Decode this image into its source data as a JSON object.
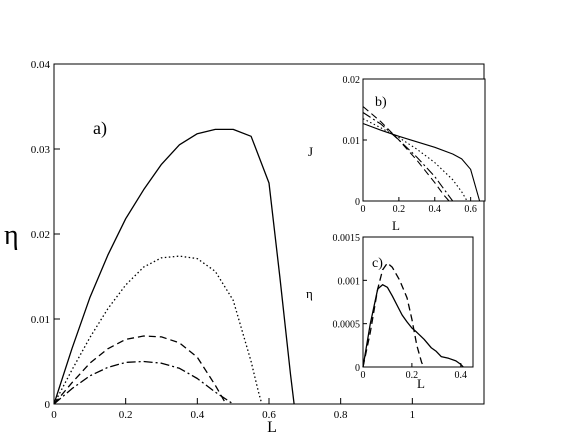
{
  "colors": {
    "line": "#000000",
    "background": "#ffffff"
  },
  "chart_data": [
    {
      "id": "main",
      "type": "line",
      "panel_label": "a)",
      "xlabel": "L",
      "ylabel": "η",
      "xlim": [
        0,
        1.2
      ],
      "ylim": [
        0,
        0.04
      ],
      "xticks": [
        0,
        0.2,
        0.4,
        0.6,
        0.8,
        1
      ],
      "xtick_labels": [
        "0",
        "0.2",
        "0.4",
        "0.6",
        "0.8",
        "1"
      ],
      "yticks": [
        0,
        0.01,
        0.02,
        0.03,
        0.04
      ],
      "ytick_labels": [
        "0",
        "0.01",
        "0.02",
        "0.03",
        "0.04"
      ],
      "grid": false,
      "series": [
        {
          "style": "solid",
          "x": [
            0,
            0.05,
            0.1,
            0.15,
            0.2,
            0.25,
            0.3,
            0.35,
            0.4,
            0.45,
            0.5,
            0.55,
            0.6,
            0.63,
            0.66,
            0.67
          ],
          "y": [
            0,
            0.0065,
            0.0125,
            0.0175,
            0.0218,
            0.0252,
            0.0282,
            0.0305,
            0.0318,
            0.0323,
            0.0323,
            0.0315,
            0.026,
            0.015,
            0.0035,
            0
          ]
        },
        {
          "style": "dotted",
          "x": [
            0,
            0.05,
            0.1,
            0.15,
            0.2,
            0.25,
            0.3,
            0.35,
            0.4,
            0.45,
            0.5,
            0.55,
            0.57,
            0.58
          ],
          "y": [
            0,
            0.004,
            0.0078,
            0.0112,
            0.014,
            0.0161,
            0.0172,
            0.0174,
            0.0171,
            0.0156,
            0.0122,
            0.005,
            0.0015,
            0
          ]
        },
        {
          "style": "dashed",
          "x": [
            0,
            0.05,
            0.1,
            0.15,
            0.2,
            0.25,
            0.3,
            0.35,
            0.4,
            0.45,
            0.48
          ],
          "y": [
            0,
            0.0025,
            0.0048,
            0.0065,
            0.0076,
            0.008,
            0.0079,
            0.0072,
            0.0055,
            0.0022,
            0
          ]
        },
        {
          "style": "dashdot",
          "x": [
            0,
            0.05,
            0.1,
            0.15,
            0.2,
            0.25,
            0.3,
            0.35,
            0.4,
            0.45,
            0.5
          ],
          "y": [
            0,
            0.0018,
            0.0033,
            0.0043,
            0.0049,
            0.005,
            0.0048,
            0.0042,
            0.003,
            0.0014,
            0
          ]
        }
      ]
    },
    {
      "id": "inset_b",
      "type": "line",
      "panel_label": "b)",
      "xlabel": "L",
      "ylabel": "J",
      "xlim": [
        0,
        0.68
      ],
      "ylim": [
        0,
        0.02
      ],
      "xticks": [
        0,
        0.2,
        0.4,
        0.6
      ],
      "xtick_labels": [
        "0",
        "0.2",
        "0.4",
        "0.6"
      ],
      "yticks": [
        0,
        0.01,
        0.02
      ],
      "ytick_labels": [
        "0",
        "0.01",
        "0.02"
      ],
      "grid": false,
      "series": [
        {
          "style": "solid",
          "x": [
            0,
            0.1,
            0.2,
            0.3,
            0.4,
            0.5,
            0.55,
            0.6,
            0.65
          ],
          "y": [
            0.0127,
            0.0116,
            0.0106,
            0.0097,
            0.0088,
            0.0077,
            0.0069,
            0.0052,
            0
          ]
        },
        {
          "style": "dotted",
          "x": [
            0,
            0.1,
            0.2,
            0.3,
            0.4,
            0.5,
            0.55,
            0.58
          ],
          "y": [
            0.0135,
            0.012,
            0.0104,
            0.0085,
            0.0063,
            0.0035,
            0.0015,
            0
          ]
        },
        {
          "style": "dashed",
          "x": [
            0,
            0.1,
            0.2,
            0.3,
            0.4,
            0.45,
            0.48
          ],
          "y": [
            0.0155,
            0.013,
            0.01,
            0.0067,
            0.003,
            0.001,
            0
          ]
        },
        {
          "style": "dashdot",
          "x": [
            0,
            0.1,
            0.2,
            0.3,
            0.4,
            0.45,
            0.5
          ],
          "y": [
            0.0145,
            0.0126,
            0.01,
            0.0072,
            0.004,
            0.002,
            0
          ]
        }
      ]
    },
    {
      "id": "inset_c",
      "type": "line",
      "panel_label": "c)",
      "xlabel": "L",
      "ylabel": "η",
      "xlim": [
        0,
        0.45
      ],
      "ylim": [
        0,
        0.0015
      ],
      "xticks": [
        0,
        0.2,
        0.4
      ],
      "xtick_labels": [
        "0",
        "0.2",
        "0.4"
      ],
      "yticks": [
        0,
        0.0005,
        0.001,
        0.0015
      ],
      "ytick_labels": [
        "0",
        "0.0005",
        "0.001",
        "0.0015"
      ],
      "grid": false,
      "series": [
        {
          "style": "solid",
          "x": [
            0,
            0.03,
            0.06,
            0.08,
            0.1,
            0.12,
            0.14,
            0.16,
            0.18,
            0.2,
            0.22,
            0.25,
            0.28,
            0.3,
            0.32,
            0.35,
            0.38,
            0.4,
            0.41
          ],
          "y": [
            0,
            0.0005,
            0.0009,
            0.00095,
            0.00092,
            0.00082,
            0.00071,
            0.0006,
            0.00052,
            0.00045,
            0.0004,
            0.00032,
            0.00022,
            0.00018,
            0.00012,
            0.0001,
            7e-05,
            3e-05,
            0
          ]
        },
        {
          "style": "dashed",
          "x": [
            0,
            0.03,
            0.06,
            0.08,
            0.1,
            0.12,
            0.15,
            0.18,
            0.2,
            0.22,
            0.24,
            0.25
          ],
          "y": [
            0,
            0.0004,
            0.0009,
            0.00112,
            0.0012,
            0.00115,
            0.001,
            0.0008,
            0.00055,
            0.00025,
            5e-05,
            0
          ]
        }
      ]
    }
  ]
}
